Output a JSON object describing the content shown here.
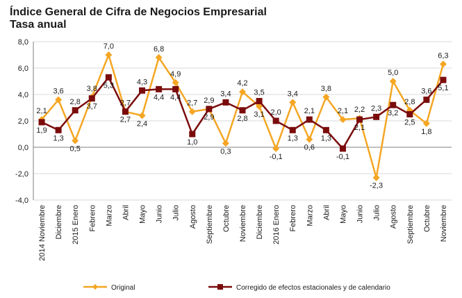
{
  "chart_data": {
    "type": "line",
    "title": "Índice General de Cifra de Negocios Empresarial",
    "subtitle": "Tasa anual",
    "categories": [
      "2014 Noviembre",
      "Diciembre",
      "2015 Enero",
      "Febrero",
      "Marzo",
      "Abril",
      "Mayo",
      "Junio",
      "Julio",
      "Agosto",
      "Septiembre",
      "Octubre",
      "Noviembre",
      "Diciembre",
      "2016 Enero",
      "Febrero",
      "Marzo",
      "Abril",
      "Mayo",
      "Junio",
      "Julio",
      "Agosto",
      "Septiembre",
      "Octubre",
      "Noviembre"
    ],
    "series": [
      {
        "name": "Original",
        "color": "#f5a623",
        "marker": "diamond",
        "values": [
          2.1,
          3.6,
          0.5,
          3.8,
          7.0,
          2.7,
          2.4,
          6.8,
          4.9,
          2.7,
          2.9,
          0.3,
          4.2,
          3.1,
          -0.1,
          3.4,
          0.6,
          3.8,
          2.1,
          2.2,
          -2.3,
          5.0,
          2.8,
          1.8,
          6.3
        ],
        "value_labels": [
          "2,1",
          "3,6",
          "0,5",
          "3,8",
          "7,0",
          "2,7",
          "2,4",
          "6,8",
          "4,9",
          "2,7",
          "2,9",
          "0,3",
          "4,2",
          "3,1",
          "-0,1",
          "3,4",
          "0,6",
          "3,8",
          "2,1",
          "2,2",
          "-2,3",
          "5,0",
          "2,8",
          "1,8",
          "6,3"
        ]
      },
      {
        "name": "Corregido de efectos estacionales y de calendario",
        "color": "#7b0c0c",
        "marker": "square",
        "values": [
          1.9,
          1.3,
          2.8,
          3.7,
          5.3,
          2.7,
          4.3,
          4.4,
          4.4,
          1.0,
          2.9,
          3.4,
          2.8,
          3.5,
          2.0,
          1.3,
          2.1,
          1.3,
          -0.1,
          2.1,
          2.3,
          3.2,
          2.5,
          3.6,
          5.1
        ],
        "value_labels": [
          "1,9",
          "1,3",
          "2,8",
          "3,7",
          "5,3",
          "2,7",
          "4,3",
          "4,4",
          "4,4",
          "1,0",
          "2,9",
          "3,4",
          "2,8",
          "3,5",
          "2,0",
          "1,3",
          "2,1",
          "1,3",
          "-0,1",
          "2,1",
          "2,3",
          "3,2",
          "2,5",
          "3,6",
          "5,1"
        ]
      }
    ],
    "ylim": [
      -4,
      8
    ],
    "yticks": [
      -4,
      -2,
      0,
      2,
      4,
      6,
      8
    ],
    "ytick_labels": [
      "-4,0",
      "-2,0",
      "0,0",
      "2,0",
      "4,0",
      "6,0",
      "8,0"
    ],
    "grid": "horizontal",
    "legend": "bottom"
  }
}
